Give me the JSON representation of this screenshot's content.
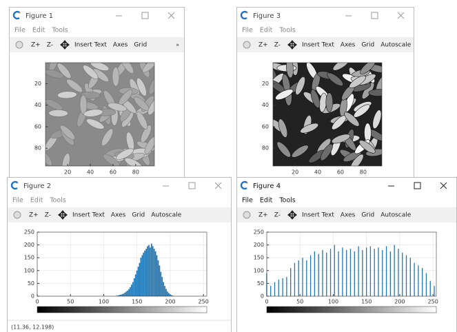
{
  "windows": [
    {
      "title": "Figure 1",
      "menu": [
        "File",
        "Edit",
        "Tools"
      ],
      "toolbar": [
        "Z+",
        "Z-",
        "Insert Text",
        "Axes",
        "Grid"
      ],
      "overflow": "»",
      "chart": {
        "type": "image",
        "xlim": [
          0.5,
          96.5
        ],
        "ylim": [
          0.5,
          96.5
        ],
        "xticks": [
          20,
          40,
          60,
          80
        ],
        "yticks": [
          20,
          40,
          60,
          80
        ]
      }
    },
    {
      "title": "Figure 2",
      "menu": [
        "File",
        "Edit",
        "Tools"
      ],
      "toolbar": [
        "Z+",
        "Z-",
        "Insert Text",
        "Axes",
        "Grid",
        "Autoscale"
      ],
      "chart": {
        "type": "bar",
        "color": "#1f77b4",
        "grid": true,
        "xlim": [
          0,
          255
        ],
        "ylim": [
          0,
          250
        ],
        "xticks": [
          0,
          50,
          100,
          150,
          200,
          250
        ],
        "yticks": [
          0,
          50,
          100,
          150,
          200,
          250
        ],
        "bar_width": 2,
        "x": [
          120,
          122,
          124,
          126,
          128,
          130,
          132,
          134,
          136,
          138,
          140,
          142,
          144,
          146,
          148,
          150,
          152,
          154,
          156,
          158,
          160,
          162,
          164,
          166,
          168,
          170,
          172,
          174,
          176,
          178,
          180,
          182,
          184,
          186,
          188,
          190,
          192,
          194,
          196,
          198,
          200,
          202,
          204
        ],
        "values": [
          2,
          3,
          5,
          6,
          8,
          10,
          14,
          18,
          22,
          28,
          35,
          45,
          55,
          70,
          85,
          100,
          115,
          130,
          150,
          160,
          170,
          178,
          185,
          195,
          200,
          190,
          205,
          195,
          185,
          175,
          160,
          140,
          120,
          95,
          75,
          55,
          40,
          28,
          18,
          12,
          7,
          4,
          2
        ]
      }
    },
    {
      "title": "Figure 3",
      "menu": [
        "File",
        "Edit",
        "Tools"
      ],
      "toolbar": [
        "Z+",
        "Z-",
        "Insert Text",
        "Axes",
        "Grid",
        "Autoscale"
      ],
      "chart": {
        "type": "image",
        "xlim": [
          0.5,
          96.5
        ],
        "ylim": [
          0.5,
          96.5
        ],
        "xticks": [
          20,
          40,
          60,
          80
        ],
        "yticks": [
          20,
          40,
          60,
          80
        ]
      }
    },
    {
      "title": "Figure 4",
      "menu": [
        "File",
        "Edit",
        "Tools"
      ],
      "toolbar": [
        "Z+",
        "Z-",
        "Insert Text",
        "Axes",
        "Grid",
        "Autoscale"
      ],
      "chart": {
        "type": "bar",
        "color": "#1f77b4",
        "grid": true,
        "xlim": [
          0,
          255
        ],
        "ylim": [
          0,
          250
        ],
        "xticks": [
          0,
          50,
          100,
          150,
          200,
          250
        ],
        "yticks": [
          0,
          50,
          100,
          150,
          200,
          250
        ],
        "bar_width": 1.5,
        "x": [
          0,
          6,
          12,
          18,
          24,
          30,
          36,
          42,
          48,
          54,
          60,
          66,
          72,
          78,
          84,
          90,
          96,
          102,
          108,
          114,
          120,
          126,
          132,
          138,
          144,
          150,
          156,
          162,
          168,
          174,
          180,
          186,
          192,
          198,
          204,
          210,
          216,
          222,
          228,
          234,
          240,
          246,
          252
        ],
        "values": [
          90,
          40,
          55,
          65,
          70,
          75,
          110,
          130,
          140,
          150,
          140,
          160,
          175,
          165,
          180,
          170,
          185,
          200,
          175,
          190,
          180,
          185,
          175,
          195,
          180,
          190,
          195,
          185,
          190,
          180,
          195,
          175,
          200,
          185,
          170,
          160,
          150,
          130,
          120,
          110,
          90,
          60,
          40
        ]
      }
    }
  ],
  "status": "(11.36, 12.198)"
}
